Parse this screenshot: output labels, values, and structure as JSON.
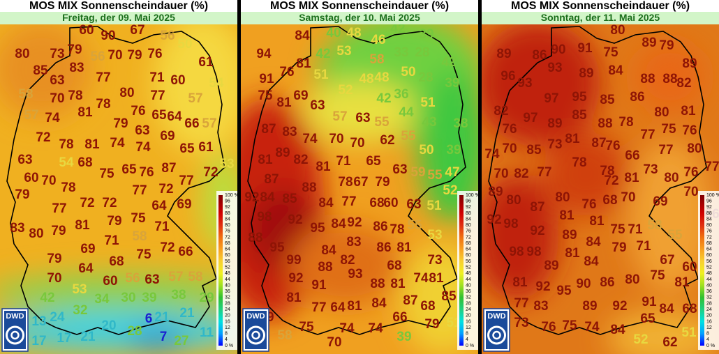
{
  "panels": [
    {
      "title": "MOS MIX Sonnenscheindauer (%)",
      "subtitle": "Freitag, der 09. Mai 2025",
      "logo": "DWD",
      "values": [
        80,
        73,
        79,
        56,
        70,
        79,
        76,
        50,
        67,
        56,
        60,
        90,
        85,
        83,
        77,
        63,
        71,
        60,
        61,
        54,
        58,
        70,
        78,
        80,
        77,
        57,
        81,
        78,
        76,
        65,
        64,
        66,
        57,
        57,
        74,
        79,
        63,
        69,
        72,
        78,
        81,
        74,
        74,
        65,
        61,
        63,
        54,
        68,
        87,
        60,
        70,
        75,
        65,
        76,
        72,
        53,
        78,
        77,
        72,
        77,
        79,
        77,
        72,
        72,
        64,
        69,
        83,
        80,
        79,
        81,
        79,
        75,
        71,
        69,
        71,
        58,
        75,
        72,
        66,
        79,
        64,
        68,
        70,
        60,
        56,
        63,
        57,
        58,
        53,
        42,
        34,
        30,
        39,
        38,
        29,
        32,
        24,
        13,
        20,
        28,
        6,
        21,
        21,
        17,
        17,
        21,
        7,
        27,
        11
      ]
    },
    {
      "title": "MOS MIX Sonnenscheindauer (%)",
      "subtitle": "Samstag, der 10. Mai 2025",
      "logo": "DWD",
      "values": [
        84,
        40,
        48,
        46,
        42,
        39,
        53,
        58,
        33,
        28,
        42,
        94,
        81,
        42,
        76,
        51,
        48,
        48,
        50,
        28,
        39,
        91,
        75,
        52,
        42,
        36,
        81,
        69,
        63,
        51,
        57,
        63,
        55,
        44,
        43,
        38,
        87,
        83,
        74,
        70,
        70,
        62,
        55,
        50,
        39,
        81,
        89,
        82,
        81,
        71,
        65,
        63,
        59,
        55,
        47,
        87,
        88,
        78,
        67,
        79,
        52,
        92,
        84,
        85,
        84,
        77,
        68,
        60,
        63,
        51,
        98,
        92,
        84,
        92,
        86,
        78,
        55,
        53,
        88,
        95,
        95,
        84,
        83,
        86,
        81,
        99,
        88,
        82,
        68,
        73,
        92,
        91,
        93,
        88,
        81,
        74,
        81,
        81,
        87,
        85,
        84,
        77,
        64,
        81,
        68,
        79,
        66,
        51,
        58,
        75,
        74,
        74,
        70,
        79,
        39
      ]
    },
    {
      "title": "MOS MIX Sonnenscheindauer (%)",
      "subtitle": "Sonntag, der 11. Mai 2025",
      "logo": "DWD",
      "values": [
        80,
        89,
        86,
        90,
        91,
        75,
        89,
        79,
        93,
        89,
        84,
        89,
        96,
        93,
        97,
        95,
        85,
        86,
        88,
        88,
        82,
        82,
        97,
        85,
        88,
        78,
        80,
        81,
        76,
        89,
        75,
        76,
        77,
        87,
        76,
        66,
        77,
        80,
        74,
        70,
        85,
        73,
        81,
        77,
        70,
        82,
        77,
        78,
        78,
        72,
        81,
        73,
        80,
        76,
        89,
        80,
        80,
        76,
        68,
        70,
        69,
        70,
        87,
        92,
        98,
        81,
        81,
        75,
        71,
        58,
        66,
        92,
        89,
        84,
        55,
        98,
        98,
        79,
        71,
        81,
        84,
        67,
        60,
        89,
        90,
        86,
        80,
        75,
        81,
        81,
        92,
        95,
        77,
        83,
        89,
        92,
        91,
        84,
        68,
        73,
        76,
        75,
        74,
        65,
        84,
        52,
        62,
        51
      ]
    }
  ],
  "legend": {
    "ticks": [
      {
        "value": 100,
        "label": "100 %"
      },
      96,
      92,
      88,
      84,
      80,
      76,
      72,
      68,
      64,
      60,
      56,
      52,
      48,
      44,
      40,
      36,
      32,
      28,
      24,
      20,
      16,
      12,
      8,
      4,
      {
        "value": 0,
        "label": "0 %"
      }
    ]
  }
}
